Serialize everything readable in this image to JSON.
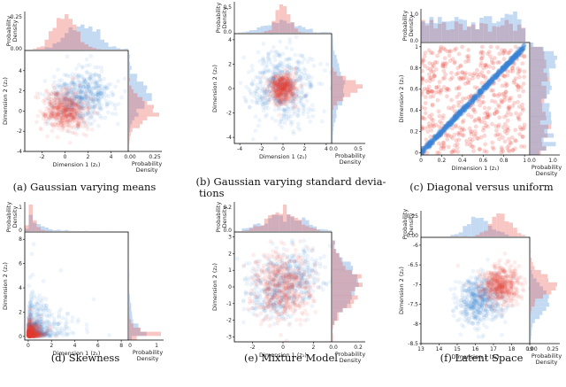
{
  "figure": {
    "colors": {
      "red": "#e8453c",
      "blue": "#3a86d4",
      "axis": "#000000"
    }
  },
  "chart_data": [
    {
      "type": "scatter",
      "id": "a",
      "caption": [
        "(a) Gaussian varying means"
      ],
      "xlabel": "Dimension 1 (z₁)",
      "ylabel": "Dimension 2 (z₂)",
      "xlim": [
        -3.5,
        5.5
      ],
      "ylim": [
        -4,
        6
      ],
      "xticks": [
        -2,
        0,
        2,
        4
      ],
      "yticks": [
        -4,
        -2,
        0,
        2,
        4
      ],
      "marg_ticks": [
        "0.00",
        "0.25"
      ],
      "marg_xlabel": [
        "Probability",
        "Density"
      ],
      "marg_ylabel": [
        "Probability",
        "Density"
      ],
      "series": [
        {
          "name": "blue",
          "dist": "gauss",
          "mean": [
            1.5,
            1.5
          ],
          "sd": [
            1.3,
            1.3
          ]
        },
        {
          "name": "red",
          "dist": "gauss",
          "mean": [
            0,
            0
          ],
          "sd": [
            1.0,
            1.0
          ]
        }
      ]
    },
    {
      "type": "scatter",
      "id": "b",
      "caption": [
        "(b) Gaussian varying standard devia-",
        "tions"
      ],
      "xlabel": "Dimension 1 (z₁)",
      "ylabel": "Dimension 2 (z₂)",
      "xlim": [
        -4.5,
        4.5
      ],
      "ylim": [
        -4.5,
        4.5
      ],
      "xticks": [
        -4,
        -2,
        0,
        2,
        4
      ],
      "yticks": [
        -4,
        -2,
        0,
        2,
        4
      ],
      "marg_ticks": [
        "0.0",
        "0.5"
      ],
      "marg_xlabel": [
        "Probability",
        "Density"
      ],
      "marg_ylabel": [
        "Probability",
        "Density"
      ],
      "series": [
        {
          "name": "blue",
          "dist": "gauss",
          "mean": [
            0,
            0
          ],
          "sd": [
            1.5,
            1.5
          ]
        },
        {
          "name": "red",
          "dist": "gauss",
          "mean": [
            0,
            0
          ],
          "sd": [
            0.6,
            0.6
          ]
        }
      ]
    },
    {
      "type": "scatter",
      "id": "c",
      "caption": [
        "(c) Diagonal versus uniform"
      ],
      "xlabel": "Dimension 1 (z₁)",
      "ylabel": "Dimension 2 (z₂)",
      "xlim": [
        0,
        1.05
      ],
      "ylim": [
        -0.02,
        1.04
      ],
      "xticks": [
        0.0,
        0.2,
        0.4,
        0.6,
        0.8,
        1.0
      ],
      "yticks": [
        0.0,
        0.2,
        0.4,
        0.6,
        0.8,
        1.0
      ],
      "marg_ticks": [
        "0.0",
        "1.0"
      ],
      "marg_xlabel": [
        "Probability",
        "Density"
      ],
      "marg_ylabel": [
        "Probability",
        "Density"
      ],
      "series": [
        {
          "name": "red",
          "dist": "uniform"
        },
        {
          "name": "blue",
          "dist": "diagonal"
        }
      ]
    },
    {
      "type": "scatter",
      "id": "d",
      "caption": [
        "(d) Skewness"
      ],
      "xlabel": "Dimension 1 (z₁)",
      "ylabel": "Dimension 2 (z₂)",
      "xlim": [
        -0.3,
        8.6
      ],
      "ylim": [
        -0.3,
        8.6
      ],
      "xticks": [
        0,
        2,
        4,
        6,
        8
      ],
      "yticks": [
        0,
        2,
        4,
        6,
        8
      ],
      "marg_ticks": [
        "0",
        "1"
      ],
      "marg_xlabel": [
        "Probability",
        "Density"
      ],
      "marg_ylabel": [
        "Probability",
        "Density"
      ],
      "series": [
        {
          "name": "blue",
          "dist": "skew",
          "scale": 0.9
        },
        {
          "name": "red",
          "dist": "skew",
          "scale": 0.35
        }
      ]
    },
    {
      "type": "scatter",
      "id": "e",
      "caption": [
        "(e) Mixture Model"
      ],
      "xlabel": "Dimension 1 (z₁)",
      "ylabel": "Dimension 2 (z₂)",
      "xlim": [
        -3.2,
        3.2
      ],
      "ylim": [
        -3.3,
        3.3
      ],
      "xticks": [
        -2,
        0,
        2
      ],
      "yticks": [
        -3,
        -2,
        -1,
        0,
        1,
        2,
        3
      ],
      "marg_ticks": [
        "0.0",
        "0.2"
      ],
      "marg_xlabel": [
        "Probability",
        "Density"
      ],
      "marg_ylabel": [
        "Probability",
        "Density"
      ],
      "series": [
        {
          "name": "blue",
          "dist": "mixture",
          "means": [
            [
              -0.8,
              -0.3
            ],
            [
              0.9,
              0.8
            ]
          ],
          "sd": [
            0.9,
            0.9
          ]
        },
        {
          "name": "red",
          "dist": "gauss",
          "mean": [
            0,
            0
          ],
          "sd": [
            1.0,
            1.0
          ]
        }
      ]
    },
    {
      "type": "scatter",
      "id": "f",
      "caption": [
        "(f) Latent Space"
      ],
      "xlabel": "Dimension 1 (z₁)",
      "ylabel": "Dimension 2 (z₂)",
      "xlim": [
        13,
        19
      ],
      "ylim": [
        -8.5,
        -5.8
      ],
      "xticks": [
        13,
        14,
        15,
        16,
        17,
        18,
        19
      ],
      "yticks": [
        -8.5,
        -8.0,
        -7.5,
        -7.0,
        -6.5,
        -6.0
      ],
      "ytick_labels": [
        "−8.5",
        "−8.0",
        "−7.5",
        "−7.0",
        "−6.5",
        "−6.0"
      ],
      "marg_ticks": [
        "0.00",
        "0.25"
      ],
      "marg_xlabel": [
        "Probability",
        "Density"
      ],
      "marg_ylabel": [
        "Probability",
        "Density"
      ],
      "series": [
        {
          "name": "blue",
          "dist": "gauss",
          "mean": [
            16.3,
            -7.4
          ],
          "sd": [
            0.7,
            0.32
          ]
        },
        {
          "name": "red",
          "dist": "gauss",
          "mean": [
            17.4,
            -7.0
          ],
          "sd": [
            0.55,
            0.25
          ]
        }
      ]
    }
  ]
}
